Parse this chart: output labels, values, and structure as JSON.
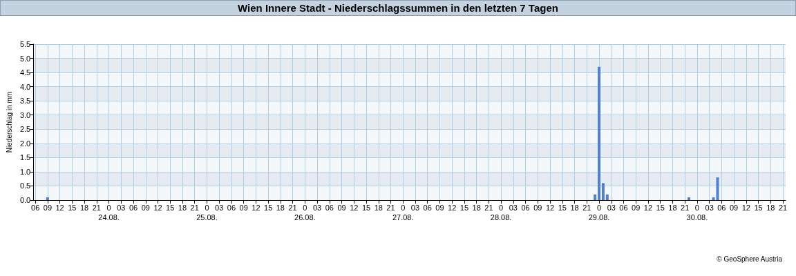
{
  "chart_data": {
    "type": "bar",
    "title": "Wien Innere Stadt - Niederschlagssummen in den letzten 7 Tagen",
    "ylabel": "Niederschlag in mm",
    "x": [
      "--08-23T09:00",
      "--08-28T23:00",
      "--08-29T00:00",
      "--08-29T01:00",
      "--08-29T02:00",
      "--08-29T22:00",
      "--08-30T04:00",
      "--08-30T05:00"
    ],
    "series": [
      {
        "color": "#4f7fd6",
        "values": [
          0.1,
          0.2,
          4.7,
          0.6,
          0.2,
          0.1,
          0.1,
          0.8
        ]
      }
    ],
    "xlim": [
      "--08-23T05:30",
      "--08-30T21:40"
    ],
    "xticks": [
      {
        "value": "--08-23T06:00",
        "label": "06"
      },
      {
        "value": "--08-23T09:00",
        "label": "09"
      },
      {
        "value": "--08-23T12:00",
        "label": "12"
      },
      {
        "value": "--08-23T15:00",
        "label": "15"
      },
      {
        "value": "--08-23T18:00",
        "label": "18"
      },
      {
        "value": "--08-23T21:00",
        "label": "21"
      },
      {
        "value": "--08-24T00:00",
        "label": "0\n24.08."
      },
      {
        "value": "--08-24T03:00",
        "label": "03"
      },
      {
        "value": "--08-24T06:00",
        "label": "06"
      },
      {
        "value": "--08-24T09:00",
        "label": "09"
      },
      {
        "value": "--08-24T12:00",
        "label": "12"
      },
      {
        "value": "--08-24T15:00",
        "label": "15"
      },
      {
        "value": "--08-24T18:00",
        "label": "18"
      },
      {
        "value": "--08-24T21:00",
        "label": "21"
      },
      {
        "value": "--08-25T00:00",
        "label": "0\n25.08."
      },
      {
        "value": "--08-25T03:00",
        "label": "03"
      },
      {
        "value": "--08-25T06:00",
        "label": "06"
      },
      {
        "value": "--08-25T09:00",
        "label": "09"
      },
      {
        "value": "--08-25T12:00",
        "label": "12"
      },
      {
        "value": "--08-25T15:00",
        "label": "15"
      },
      {
        "value": "--08-25T18:00",
        "label": "18"
      },
      {
        "value": "--08-25T21:00",
        "label": "21"
      },
      {
        "value": "--08-26T00:00",
        "label": "0\n26.08."
      },
      {
        "value": "--08-26T03:00",
        "label": "03"
      },
      {
        "value": "--08-26T06:00",
        "label": "06"
      },
      {
        "value": "--08-26T09:00",
        "label": "09"
      },
      {
        "value": "--08-26T12:00",
        "label": "12"
      },
      {
        "value": "--08-26T15:00",
        "label": "15"
      },
      {
        "value": "--08-26T18:00",
        "label": "18"
      },
      {
        "value": "--08-26T21:00",
        "label": "21"
      },
      {
        "value": "--08-27T00:00",
        "label": "0\n27.08."
      },
      {
        "value": "--08-27T03:00",
        "label": "03"
      },
      {
        "value": "--08-27T06:00",
        "label": "06"
      },
      {
        "value": "--08-27T09:00",
        "label": "09"
      },
      {
        "value": "--08-27T12:00",
        "label": "12"
      },
      {
        "value": "--08-27T15:00",
        "label": "15"
      },
      {
        "value": "--08-27T18:00",
        "label": "18"
      },
      {
        "value": "--08-27T21:00",
        "label": "21"
      },
      {
        "value": "--08-28T00:00",
        "label": "0\n28.08."
      },
      {
        "value": "--08-28T03:00",
        "label": "03"
      },
      {
        "value": "--08-28T06:00",
        "label": "06"
      },
      {
        "value": "--08-28T09:00",
        "label": "09"
      },
      {
        "value": "--08-28T12:00",
        "label": "12"
      },
      {
        "value": "--08-28T15:00",
        "label": "15"
      },
      {
        "value": "--08-28T18:00",
        "label": "18"
      },
      {
        "value": "--08-28T21:00",
        "label": "21"
      },
      {
        "value": "--08-29T00:00",
        "label": "0\n29.08."
      },
      {
        "value": "--08-29T03:00",
        "label": "03"
      },
      {
        "value": "--08-29T06:00",
        "label": "06"
      },
      {
        "value": "--08-29T09:00",
        "label": "09"
      },
      {
        "value": "--08-29T12:00",
        "label": "12"
      },
      {
        "value": "--08-29T15:00",
        "label": "15"
      },
      {
        "value": "--08-29T18:00",
        "label": "18"
      },
      {
        "value": "--08-29T21:00",
        "label": "21"
      },
      {
        "value": "--08-30T00:00",
        "label": "0\n30.08."
      },
      {
        "value": "--08-30T03:00",
        "label": "03"
      },
      {
        "value": "--08-30T06:00",
        "label": "06"
      },
      {
        "value": "--08-30T09:00",
        "label": "09"
      },
      {
        "value": "--08-30T12:00",
        "label": "12"
      },
      {
        "value": "--08-30T15:00",
        "label": "15"
      },
      {
        "value": "--08-30T18:00",
        "label": "18"
      },
      {
        "value": "--08-30T21:00",
        "label": "21"
      }
    ],
    "ylim": [
      0,
      5.5
    ],
    "yticks": [
      {
        "value": 0,
        "label": "0.0"
      },
      {
        "value": 0.5,
        "label": "0.5"
      },
      {
        "value": 1,
        "label": "1.0"
      },
      {
        "value": 1.5,
        "label": "1.5"
      },
      {
        "value": 2,
        "label": "2.0"
      },
      {
        "value": 2.5,
        "label": "2.5"
      },
      {
        "value": 3,
        "label": "3.0"
      },
      {
        "value": 3.5,
        "label": "3.5"
      },
      {
        "value": 4,
        "label": "4.0"
      },
      {
        "value": 4.5,
        "label": "4.5"
      },
      {
        "value": 5,
        "label": "5.0"
      },
      {
        "value": 5.5,
        "label": "5.5"
      }
    ],
    "grid": true,
    "annotations": [
      "© GeoSphere Austria"
    ]
  }
}
